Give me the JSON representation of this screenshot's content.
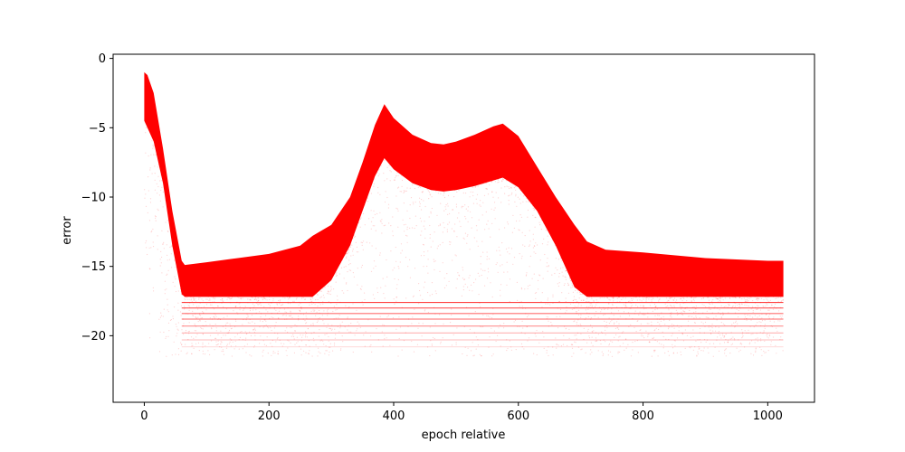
{
  "chart_data": {
    "type": "scatter",
    "title": "",
    "xlabel": "epoch relative",
    "ylabel": "error",
    "xlim": [
      -50,
      1075
    ],
    "ylim": [
      -24.8,
      0.3
    ],
    "grid": false,
    "legend": "none",
    "color": "#ff0000",
    "x_ticks": [
      {
        "value": 0,
        "label": "0"
      },
      {
        "value": 200,
        "label": "200"
      },
      {
        "value": 400,
        "label": "400"
      },
      {
        "value": 600,
        "label": "600"
      },
      {
        "value": 800,
        "label": "800"
      },
      {
        "value": 1000,
        "label": "1000"
      }
    ],
    "y_ticks": [
      {
        "value": 0,
        "label": "0"
      },
      {
        "value": -5,
        "label": "−5"
      },
      {
        "value": -10,
        "label": "−10"
      },
      {
        "value": -15,
        "label": "−15"
      },
      {
        "value": -20,
        "label": "−20"
      }
    ],
    "x_range": [
      0,
      1025
    ],
    "dense_band": {
      "x": [
        0,
        5,
        15,
        30,
        45,
        60,
        65,
        100,
        150,
        200,
        250,
        270,
        300,
        330,
        350,
        370,
        385,
        400,
        430,
        460,
        480,
        500,
        530,
        560,
        575,
        600,
        630,
        660,
        690,
        710,
        740,
        800,
        900,
        1000,
        1025
      ],
      "upper": [
        -1.0,
        -1.2,
        -2.5,
        -6.5,
        -11.0,
        -14.6,
        -14.9,
        -14.7,
        -14.4,
        -14.1,
        -13.5,
        -12.8,
        -12.0,
        -10.0,
        -7.5,
        -4.8,
        -3.3,
        -4.3,
        -5.5,
        -6.1,
        -6.2,
        -6.0,
        -5.5,
        -4.9,
        -4.7,
        -5.6,
        -7.8,
        -10.0,
        -12.0,
        -13.2,
        -13.8,
        -14.0,
        -14.4,
        -14.6,
        -14.6
      ],
      "lower": [
        -4.5,
        -5.0,
        -6.0,
        -9.0,
        -13.5,
        -17.0,
        -17.2,
        -17.2,
        -17.2,
        -17.2,
        -17.2,
        -17.2,
        -16.0,
        -13.5,
        -11.0,
        -8.5,
        -7.2,
        -8.0,
        -9.0,
        -9.5,
        -9.6,
        -9.5,
        -9.2,
        -8.8,
        -8.6,
        -9.3,
        -11.0,
        -13.5,
        -16.5,
        -17.2,
        -17.2,
        -17.2,
        -17.2,
        -17.2,
        -17.2
      ]
    },
    "sparse_floor": -21.5,
    "quantized_levels": [
      -17.6,
      -18.0,
      -18.4,
      -18.8,
      -19.3,
      -19.8,
      -20.3,
      -20.8
    ]
  }
}
